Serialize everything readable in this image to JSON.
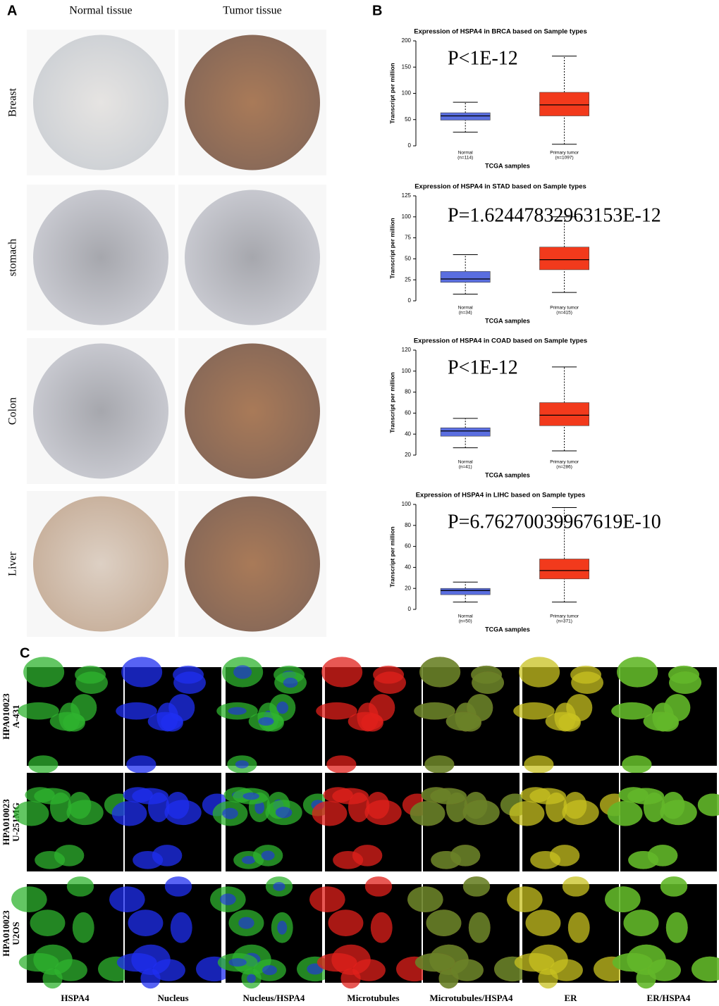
{
  "panel_a": {
    "label": "A",
    "columns": [
      "Normal tissue",
      "Tumor tissue"
    ],
    "rows": [
      "Breast",
      "stomach",
      "Colon",
      "Liver"
    ]
  },
  "panel_b": {
    "label": "B"
  },
  "chart_data": [
    {
      "type": "box",
      "title": "Expression of HSPA4 in BRCA based on Sample types",
      "annotation": "P<1E-12",
      "y_label": "Transcript per million",
      "x_label": "TCGA samples",
      "ylim": [
        0,
        200
      ],
      "yticks": [
        0,
        50,
        100,
        150,
        200
      ],
      "boxes": [
        {
          "category": "Normal",
          "note": "(n=114)",
          "color": "#5a6ee0",
          "whisker_low": 26,
          "q1": 49,
          "median": 57,
          "q3": 63,
          "whisker_high": 83
        },
        {
          "category": "Primary tumor",
          "note": "(n=1097)",
          "color": "#f23a1c",
          "whisker_low": 3,
          "q1": 57,
          "median": 78,
          "q3": 102,
          "whisker_high": 171
        }
      ]
    },
    {
      "type": "box",
      "title": "Expression of HSPA4 in STAD based on Sample types",
      "annotation": "P=1.62447832963153E-12",
      "y_label": "Transcript per million",
      "x_label": "TCGA samples",
      "ylim": [
        0,
        125
      ],
      "yticks": [
        0,
        25,
        50,
        75,
        100,
        125
      ],
      "boxes": [
        {
          "category": "Normal",
          "note": "(n=34)",
          "color": "#5a6ee0",
          "whisker_low": 8,
          "q1": 22,
          "median": 26,
          "q3": 35,
          "whisker_high": 55
        },
        {
          "category": "Primary tumor",
          "note": "(n=415)",
          "color": "#f23a1c",
          "whisker_low": 10,
          "q1": 37,
          "median": 49,
          "q3": 64,
          "whisker_high": 100
        }
      ]
    },
    {
      "type": "box",
      "title": "Expression of HSPA4 in COAD based on Sample types",
      "annotation": "P<1E-12",
      "y_label": "Transcript per million",
      "x_label": "TCGA samples",
      "ylim": [
        20,
        120
      ],
      "yticks": [
        20,
        40,
        60,
        80,
        100,
        120
      ],
      "boxes": [
        {
          "category": "Normal",
          "note": "(n=41)",
          "color": "#5a6ee0",
          "whisker_low": 27,
          "q1": 38,
          "median": 43,
          "q3": 46,
          "whisker_high": 55
        },
        {
          "category": "Primary tumor",
          "note": "(n=286)",
          "color": "#f23a1c",
          "whisker_low": 24,
          "q1": 48,
          "median": 58,
          "q3": 70,
          "whisker_high": 104
        }
      ]
    },
    {
      "type": "box",
      "title": "Expression of HSPA4 in LIHC based on Sample types",
      "annotation": "P=6.76270039967619E-10",
      "y_label": "Transcript per million",
      "x_label": "TCGA samples",
      "ylim": [
        0,
        100
      ],
      "yticks": [
        0,
        20,
        40,
        60,
        80,
        100
      ],
      "boxes": [
        {
          "category": "Normal",
          "note": "(n=50)",
          "color": "#5a6ee0",
          "whisker_low": 7,
          "q1": 14,
          "median": 18,
          "q3": 20,
          "whisker_high": 26
        },
        {
          "category": "Primary tumor",
          "note": "(n=371)",
          "color": "#f23a1c",
          "whisker_low": 7,
          "q1": 29,
          "median": 37,
          "q3": 48,
          "whisker_high": 97
        }
      ]
    }
  ],
  "panel_c": {
    "label": "C",
    "rows": [
      [
        "HPA010023",
        "A-431"
      ],
      [
        "HPA010023",
        "U-251MG"
      ],
      [
        "HPA010023",
        "U2OS"
      ]
    ],
    "columns": [
      "HSPA4",
      "Nucleus",
      "Nucleus/HSPA4",
      "Microtubules",
      "Microtubules/HSPA4",
      "ER",
      "ER/HSPA4"
    ]
  }
}
